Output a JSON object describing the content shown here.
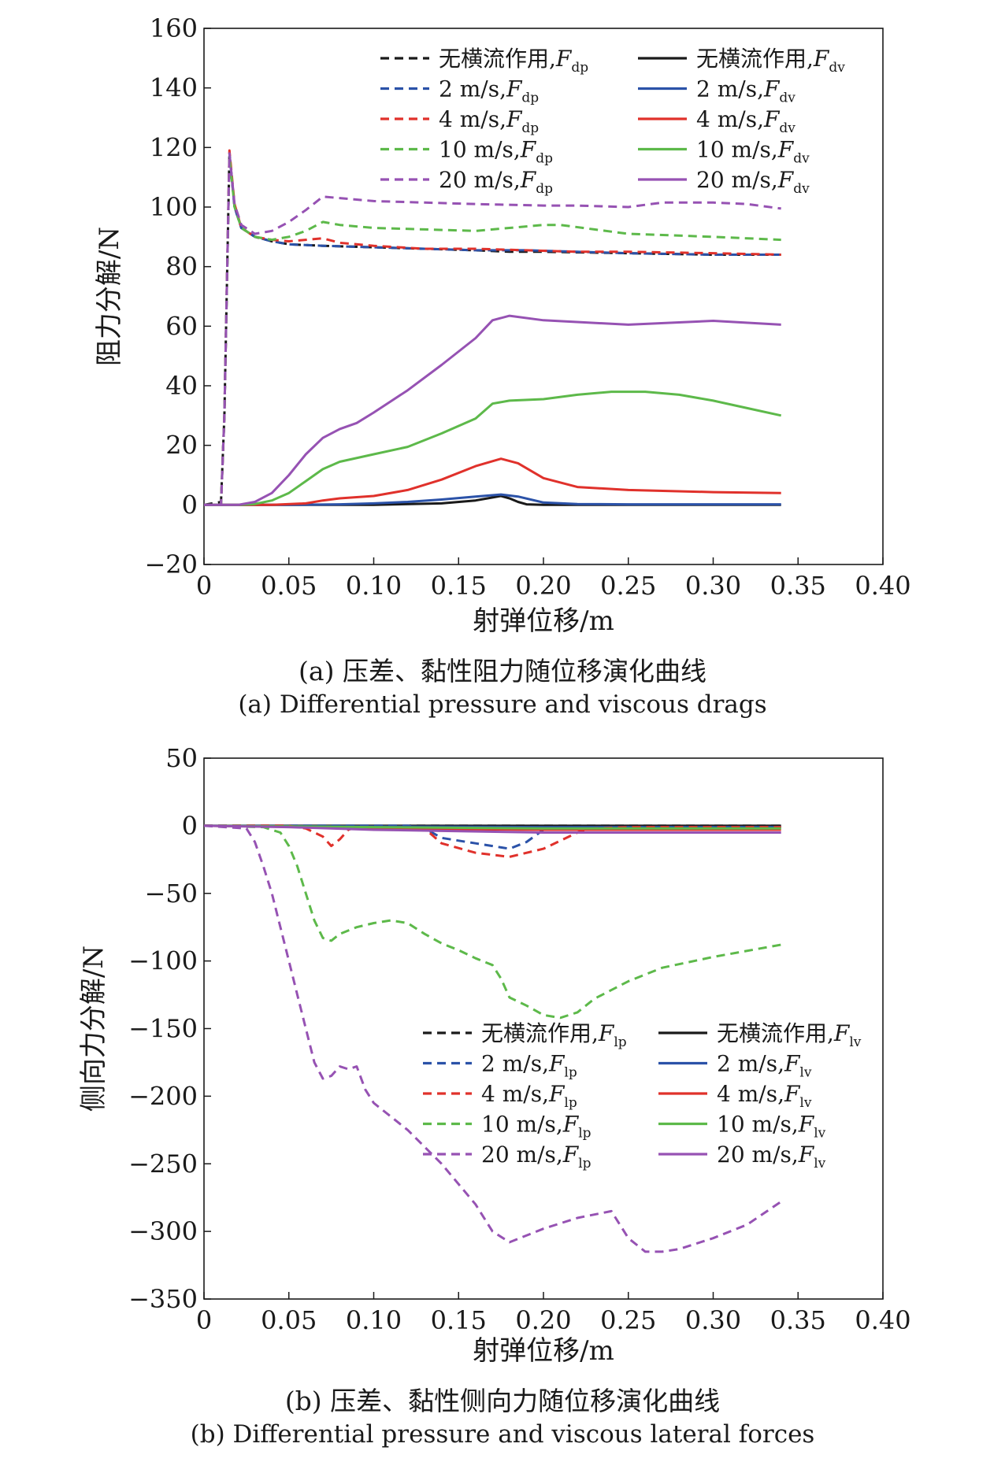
{
  "chart_data": [
    {
      "type": "line",
      "panel": "a",
      "xlabel": "射弹位移/m",
      "ylabel": "阻力分解/N",
      "xlim": [
        0,
        0.4
      ],
      "ylim": [
        -20,
        160
      ],
      "xticks": [
        "0",
        "0.05",
        "0.10",
        "0.15",
        "0.20",
        "0.25",
        "0.30",
        "0.35",
        "0.40"
      ],
      "yticks": [
        "−20",
        "0",
        "20",
        "40",
        "60",
        "80",
        "100",
        "120",
        "140",
        "160"
      ],
      "grid": false,
      "legend_position": "top",
      "caption_cn": "(a) 压差、黏性阻力随位移演化曲线",
      "caption_en": "(a) Differential pressure and viscous drags",
      "series": [
        {
          "name": "无横流作用,",
          "sym": "F",
          "sub": "dp",
          "color": "#1a1a1a",
          "style": "dashed",
          "x": [
            0,
            0.005,
            0.01,
            0.012,
            0.015,
            0.018,
            0.022,
            0.03,
            0.04,
            0.05,
            0.07,
            0.1,
            0.13,
            0.16,
            0.18,
            0.2,
            0.25,
            0.3,
            0.34
          ],
          "y": [
            0,
            0.5,
            1,
            30,
            118,
            100,
            93,
            90,
            88.5,
            87.5,
            87,
            86.5,
            86,
            85.5,
            85,
            85,
            84.5,
            84,
            84
          ]
        },
        {
          "name": "无横流作用,",
          "sym": "F",
          "sub": "dv",
          "color": "#1a1a1a",
          "style": "solid",
          "x": [
            0,
            0.05,
            0.1,
            0.14,
            0.16,
            0.17,
            0.175,
            0.18,
            0.185,
            0.19,
            0.2,
            0.25,
            0.3,
            0.34
          ],
          "y": [
            0,
            0,
            0,
            0.5,
            1.5,
            2.5,
            3,
            2.2,
            1,
            0.2,
            0,
            0,
            0,
            0
          ]
        },
        {
          "name": "2 m/s,",
          "sym": "F",
          "sub": "dp",
          "color": "#2b52a8",
          "style": "dashed",
          "x": [
            0,
            0.01,
            0.012,
            0.015,
            0.018,
            0.022,
            0.03,
            0.04,
            0.05,
            0.07,
            0.1,
            0.13,
            0.16,
            0.19,
            0.22,
            0.25,
            0.3,
            0.34
          ],
          "y": [
            0,
            0,
            30,
            118,
            100,
            93,
            90,
            88.5,
            87.5,
            87,
            86.5,
            86,
            85.5,
            85.5,
            85,
            84.5,
            84,
            84
          ]
        },
        {
          "name": "2 m/s,",
          "sym": "F",
          "sub": "dv",
          "color": "#2b52a8",
          "style": "solid",
          "x": [
            0,
            0.05,
            0.08,
            0.1,
            0.12,
            0.14,
            0.16,
            0.175,
            0.185,
            0.2,
            0.22,
            0.25,
            0.3,
            0.34
          ],
          "y": [
            0,
            0,
            0.2,
            0.5,
            1,
            1.8,
            2.8,
            3.5,
            2.8,
            0.8,
            0.3,
            0.2,
            0.2,
            0.2
          ]
        },
        {
          "name": "4 m/s,",
          "sym": "F",
          "sub": "dp",
          "color": "#e0312b",
          "style": "dashed",
          "x": [
            0,
            0.01,
            0.012,
            0.015,
            0.018,
            0.022,
            0.03,
            0.04,
            0.05,
            0.07,
            0.08,
            0.1,
            0.13,
            0.16,
            0.19,
            0.22,
            0.25,
            0.3,
            0.34
          ],
          "y": [
            0,
            0,
            30,
            119,
            101,
            93,
            90,
            89,
            88.5,
            89.5,
            88,
            87,
            86,
            86,
            85.5,
            85,
            85,
            84.5,
            84
          ]
        },
        {
          "name": "4 m/s,",
          "sym": "F",
          "sub": "dv",
          "color": "#e0312b",
          "style": "solid",
          "x": [
            0,
            0.04,
            0.06,
            0.07,
            0.08,
            0.1,
            0.12,
            0.14,
            0.16,
            0.175,
            0.185,
            0.2,
            0.22,
            0.25,
            0.3,
            0.34
          ],
          "y": [
            0,
            0,
            0.5,
            1.5,
            2.2,
            3,
            5,
            8.5,
            13,
            15.5,
            14,
            9,
            6,
            5,
            4.3,
            4
          ]
        },
        {
          "name": "10 m/s,",
          "sym": "F",
          "sub": "dp",
          "color": "#5db94a",
          "style": "dashed",
          "x": [
            0,
            0.01,
            0.012,
            0.015,
            0.018,
            0.022,
            0.03,
            0.04,
            0.05,
            0.06,
            0.07,
            0.08,
            0.1,
            0.13,
            0.16,
            0.18,
            0.2,
            0.21,
            0.23,
            0.25,
            0.3,
            0.34
          ],
          "y": [
            0,
            0,
            30,
            117,
            100,
            93,
            90,
            89,
            90,
            92,
            95,
            94,
            93,
            92.5,
            92,
            93,
            94,
            94,
            92.5,
            91,
            90,
            89
          ]
        },
        {
          "name": "10 m/s,",
          "sym": "F",
          "sub": "dv",
          "color": "#5db94a",
          "style": "solid",
          "x": [
            0,
            0.02,
            0.03,
            0.04,
            0.05,
            0.06,
            0.07,
            0.08,
            0.1,
            0.12,
            0.14,
            0.16,
            0.17,
            0.18,
            0.2,
            0.22,
            0.24,
            0.26,
            0.28,
            0.3,
            0.32,
            0.34
          ],
          "y": [
            0,
            0,
            0.3,
            1.5,
            4,
            8,
            12,
            14.5,
            17,
            19.5,
            24,
            29,
            34,
            35,
            35.5,
            37,
            38,
            38,
            37,
            35,
            32.5,
            30
          ]
        },
        {
          "name": "20 m/s,",
          "sym": "F",
          "sub": "dp",
          "color": "#9652b3",
          "style": "dashed",
          "x": [
            0,
            0.01,
            0.012,
            0.015,
            0.018,
            0.022,
            0.03,
            0.04,
            0.05,
            0.06,
            0.07,
            0.08,
            0.1,
            0.13,
            0.16,
            0.2,
            0.22,
            0.25,
            0.27,
            0.3,
            0.32,
            0.34
          ],
          "y": [
            0,
            0,
            30,
            118,
            101,
            94,
            91,
            92,
            95,
            99,
            103.5,
            103,
            102,
            101.5,
            101,
            100.5,
            100.5,
            100,
            101.5,
            101.5,
            101,
            99.5
          ]
        },
        {
          "name": "20 m/s,",
          "sym": "F",
          "sub": "dv",
          "color": "#9652b3",
          "style": "solid",
          "x": [
            0,
            0.02,
            0.03,
            0.04,
            0.05,
            0.06,
            0.07,
            0.08,
            0.09,
            0.1,
            0.12,
            0.14,
            0.16,
            0.17,
            0.18,
            0.2,
            0.25,
            0.3,
            0.34
          ],
          "y": [
            0,
            0,
            1,
            4,
            10,
            17,
            22.5,
            25.5,
            27.5,
            31,
            38.5,
            47,
            56,
            62,
            63.5,
            62,
            60.5,
            61.8,
            60.5
          ]
        }
      ]
    },
    {
      "type": "line",
      "panel": "b",
      "xlabel": "射弹位移/m",
      "ylabel": "侧向力分解/N",
      "xlim": [
        0,
        0.4
      ],
      "ylim": [
        -350,
        50
      ],
      "xticks": [
        "0",
        "0.05",
        "0.10",
        "0.15",
        "0.20",
        "0.25",
        "0.30",
        "0.35",
        "0.40"
      ],
      "yticks": [
        "−350",
        "−300",
        "−250",
        "−200",
        "−150",
        "−100",
        "−50",
        "0",
        "50"
      ],
      "grid": false,
      "legend_position": "right",
      "caption_cn": "(b) 压差、黏性侧向力随位移演化曲线",
      "caption_en": "(b) Differential pressure and viscous lateral forces",
      "series": [
        {
          "name": "无横流作用,",
          "sym": "F",
          "sub": "lp",
          "color": "#1a1a1a",
          "style": "dashed",
          "x": [
            0,
            0.1,
            0.2,
            0.3,
            0.34
          ],
          "y": [
            0,
            0,
            0,
            0,
            0
          ]
        },
        {
          "name": "无横流作用,",
          "sym": "F",
          "sub": "lv",
          "color": "#1a1a1a",
          "style": "solid",
          "x": [
            0,
            0.1,
            0.2,
            0.3,
            0.34
          ],
          "y": [
            0,
            0,
            0,
            0,
            0
          ]
        },
        {
          "name": "2 m/s,",
          "sym": "F",
          "sub": "lp",
          "color": "#2b52a8",
          "style": "dashed",
          "x": [
            0,
            0.12,
            0.13,
            0.14,
            0.15,
            0.16,
            0.17,
            0.18,
            0.19,
            0.2,
            0.25,
            0.34
          ],
          "y": [
            0,
            0,
            -2,
            -9,
            -11,
            -13,
            -15,
            -17,
            -12,
            -3,
            -1,
            -1
          ]
        },
        {
          "name": "2 m/s,",
          "sym": "F",
          "sub": "lv",
          "color": "#2b52a8",
          "style": "solid",
          "x": [
            0,
            0.1,
            0.2,
            0.3,
            0.34
          ],
          "y": [
            0,
            -0.5,
            -1,
            -1,
            -1
          ]
        },
        {
          "name": "4 m/s,",
          "sym": "F",
          "sub": "lp",
          "color": "#e0312b",
          "style": "dashed",
          "x": [
            0,
            0.05,
            0.06,
            0.07,
            0.075,
            0.08,
            0.085,
            0.09,
            0.13,
            0.14,
            0.16,
            0.18,
            0.2,
            0.22,
            0.23,
            0.25,
            0.34
          ],
          "y": [
            0,
            0,
            -2,
            -8,
            -15,
            -10,
            -3,
            -1,
            -2,
            -13,
            -20,
            -23,
            -17,
            -5,
            -2,
            -1,
            -1
          ]
        },
        {
          "name": "4 m/s,",
          "sym": "F",
          "sub": "lv",
          "color": "#e0312b",
          "style": "solid",
          "x": [
            0,
            0.06,
            0.1,
            0.2,
            0.3,
            0.34
          ],
          "y": [
            0,
            -1,
            -2,
            -3,
            -3,
            -3
          ]
        },
        {
          "name": "10 m/s,",
          "sym": "F",
          "sub": "lp",
          "color": "#5db94a",
          "style": "dashed",
          "x": [
            0,
            0.035,
            0.045,
            0.05,
            0.055,
            0.06,
            0.065,
            0.07,
            0.075,
            0.08,
            0.09,
            0.1,
            0.11,
            0.12,
            0.13,
            0.14,
            0.15,
            0.16,
            0.17,
            0.175,
            0.18,
            0.19,
            0.2,
            0.21,
            0.22,
            0.23,
            0.25,
            0.27,
            0.3,
            0.34
          ],
          "y": [
            0,
            -1,
            -5,
            -15,
            -30,
            -50,
            -70,
            -83,
            -85,
            -80,
            -75,
            -72,
            -70,
            -72,
            -80,
            -87,
            -92,
            -98,
            -103,
            -113,
            -127,
            -133,
            -140,
            -142,
            -138,
            -128,
            -115,
            -105,
            -97,
            -88
          ]
        },
        {
          "name": "10 m/s,",
          "sym": "F",
          "sub": "lv",
          "color": "#5db94a",
          "style": "solid",
          "x": [
            0,
            0.1,
            0.2,
            0.3,
            0.34
          ],
          "y": [
            0,
            -1,
            -2,
            -2,
            -2
          ]
        },
        {
          "name": "20 m/s,",
          "sym": "F",
          "sub": "lp",
          "color": "#9652b3",
          "style": "dashed",
          "x": [
            0,
            0.025,
            0.03,
            0.035,
            0.04,
            0.045,
            0.05,
            0.055,
            0.06,
            0.065,
            0.07,
            0.075,
            0.08,
            0.085,
            0.09,
            0.095,
            0.1,
            0.12,
            0.14,
            0.16,
            0.17,
            0.18,
            0.2,
            0.22,
            0.24,
            0.25,
            0.26,
            0.27,
            0.28,
            0.3,
            0.32,
            0.34
          ],
          "y": [
            0,
            -2,
            -12,
            -30,
            -50,
            -75,
            -100,
            -125,
            -150,
            -175,
            -187,
            -185,
            -178,
            -180,
            -178,
            -195,
            -205,
            -225,
            -250,
            -280,
            -300,
            -308,
            -298,
            -290,
            -285,
            -305,
            -315,
            -315,
            -313,
            -305,
            -295,
            -278
          ]
        },
        {
          "name": "20 m/s,",
          "sym": "F",
          "sub": "lv",
          "color": "#9652b3",
          "style": "solid",
          "x": [
            0,
            0.05,
            0.1,
            0.2,
            0.3,
            0.34
          ],
          "y": [
            0,
            -1,
            -3,
            -5,
            -5,
            -5
          ]
        }
      ]
    }
  ]
}
